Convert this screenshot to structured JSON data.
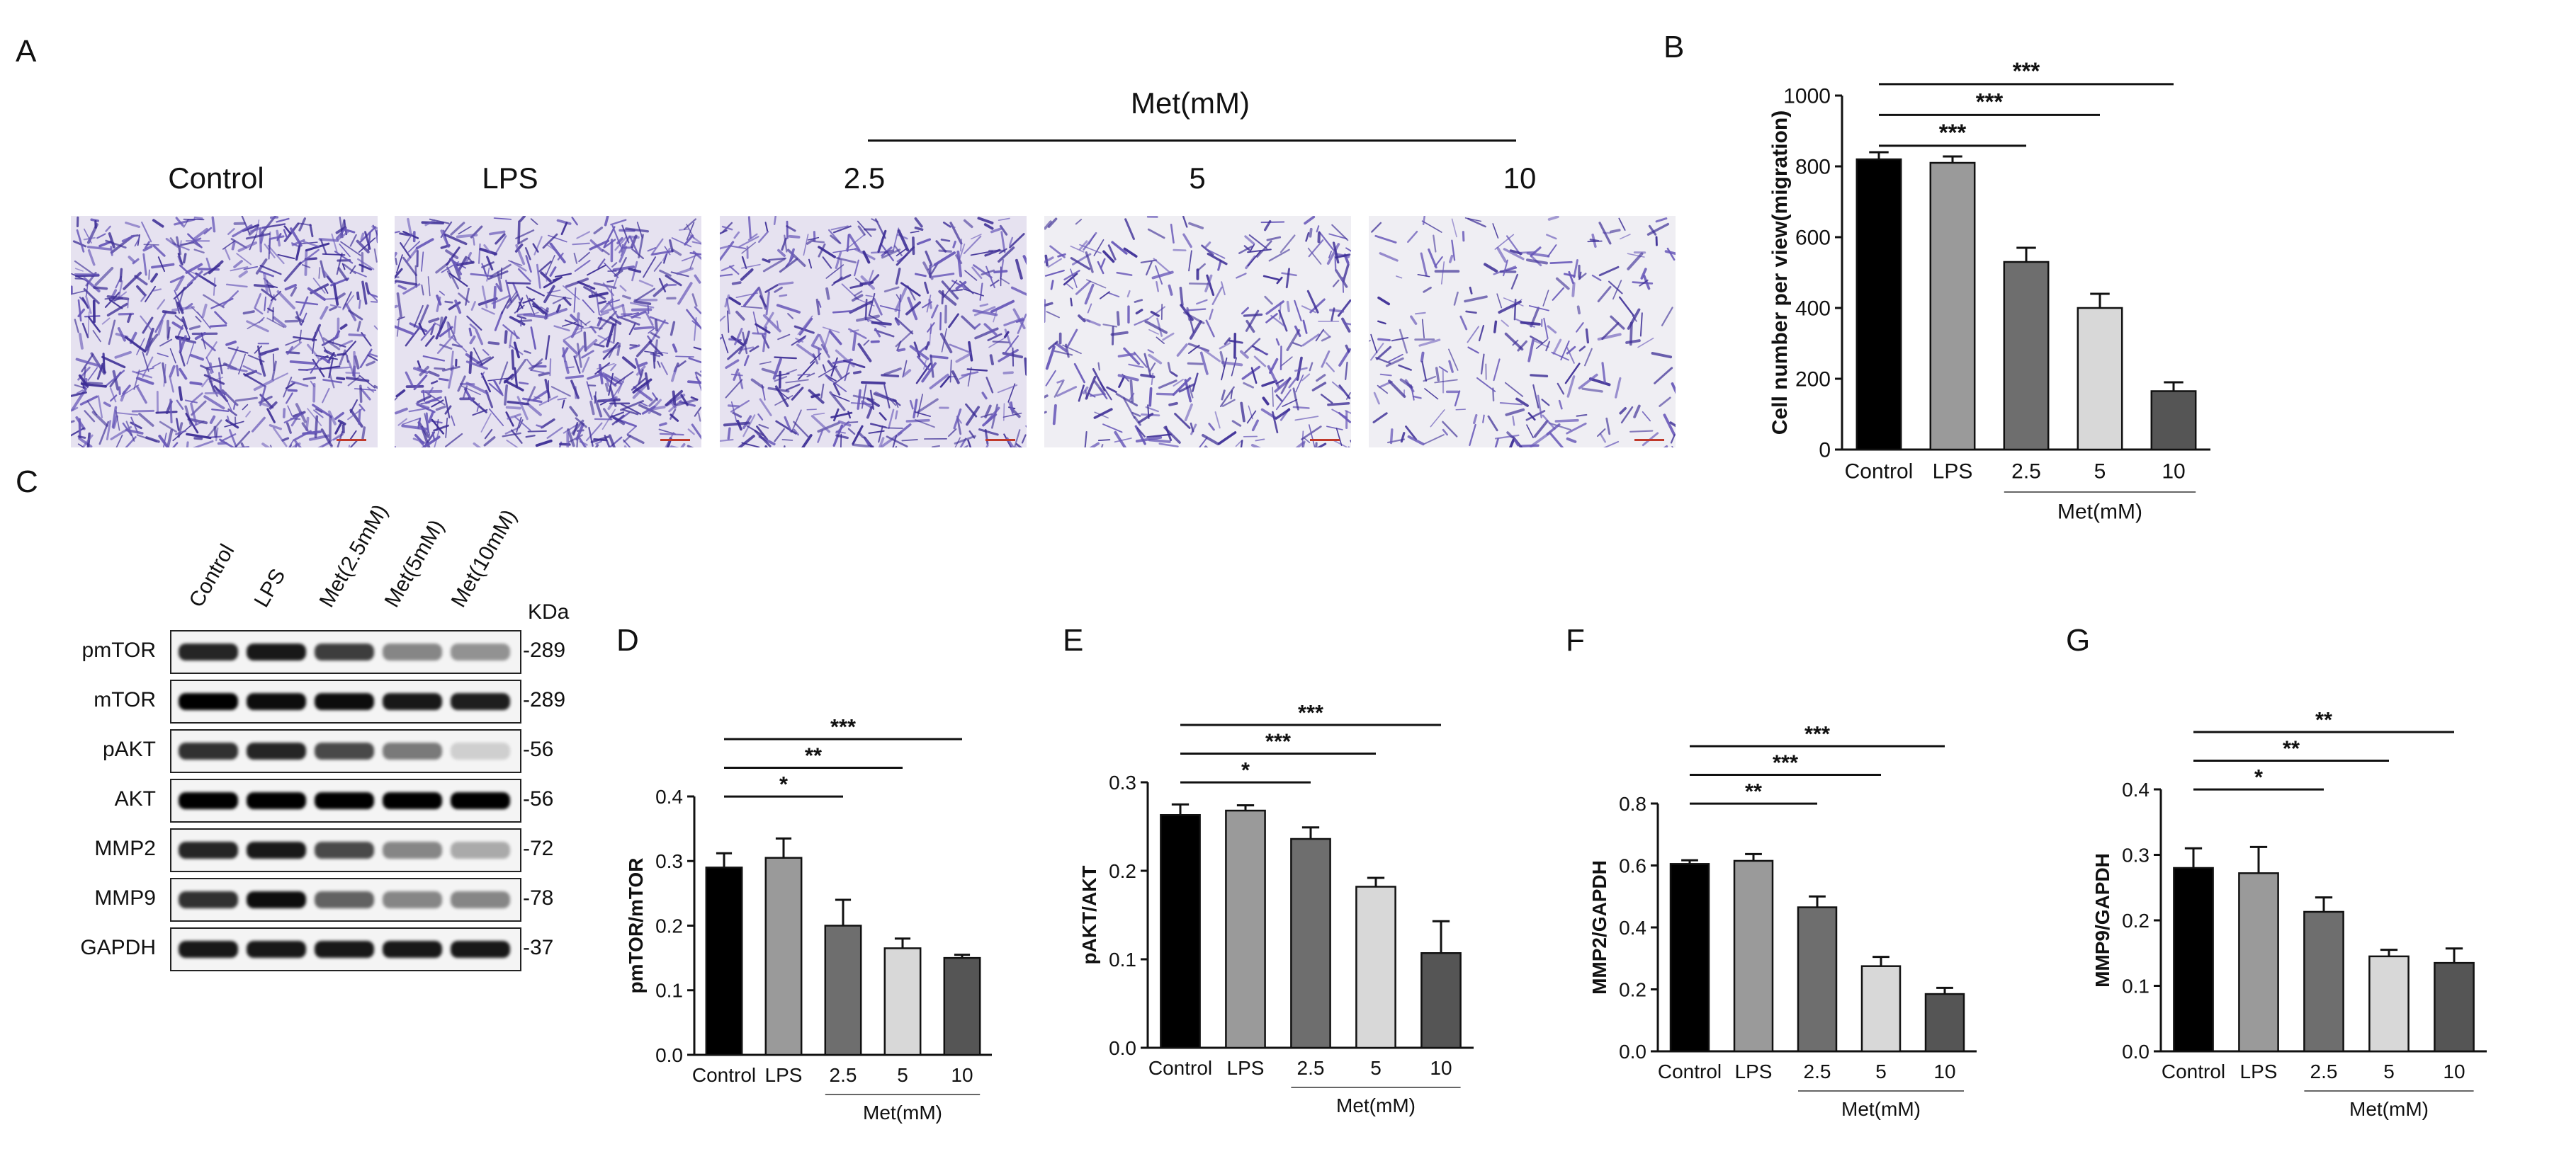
{
  "panel_letters": {
    "a": "A",
    "b": "B",
    "c": "C",
    "d": "D",
    "e": "E",
    "f": "F",
    "g": "G"
  },
  "panel_a": {
    "group_label": "Met(mM)",
    "columns": [
      "Control",
      "LPS",
      "2.5",
      "5",
      "10"
    ]
  },
  "panel_c": {
    "lanes": [
      "Control",
      "LPS",
      "Met(2.5mM)",
      "Met(5mM)",
      "Met(10mM)"
    ],
    "kda_header": "KDa",
    "rows": [
      {
        "protein": "pmTOR",
        "kda": "-289",
        "intensity": [
          0.85,
          0.9,
          0.75,
          0.45,
          0.4
        ]
      },
      {
        "protein": "mTOR",
        "kda": "-289",
        "intensity": [
          1.0,
          0.95,
          0.95,
          0.9,
          0.88
        ]
      },
      {
        "protein": "pAKT",
        "kda": "-56",
        "intensity": [
          0.8,
          0.85,
          0.7,
          0.5,
          0.15
        ]
      },
      {
        "protein": "AKT",
        "kda": "-56",
        "intensity": [
          1.0,
          1.0,
          1.0,
          1.0,
          1.0
        ]
      },
      {
        "protein": "MMP2",
        "kda": "-72",
        "intensity": [
          0.85,
          0.9,
          0.7,
          0.45,
          0.3
        ]
      },
      {
        "protein": "MMP9",
        "kda": "-78",
        "intensity": [
          0.8,
          0.95,
          0.6,
          0.45,
          0.45
        ]
      },
      {
        "protein": "GAPDH",
        "kda": "-37",
        "intensity": [
          0.9,
          0.9,
          0.9,
          0.9,
          0.9
        ]
      }
    ]
  },
  "chart_data": [
    {
      "panel": "B",
      "type": "bar",
      "categories": [
        "Control",
        "LPS",
        "2.5",
        "5",
        "10"
      ],
      "values": [
        820,
        810,
        530,
        400,
        165
      ],
      "errors": [
        20,
        18,
        40,
        40,
        25
      ],
      "ylabel": "Cell number per view(migration)",
      "ylim": [
        0,
        1000
      ],
      "yticks": [
        0,
        200,
        400,
        600,
        800,
        1000
      ],
      "group_label": "Met(mM)",
      "significance": [
        {
          "from": "Control",
          "to": "2.5",
          "label": "***"
        },
        {
          "from": "Control",
          "to": "5",
          "label": "***"
        },
        {
          "from": "Control",
          "to": "10",
          "label": "***"
        }
      ],
      "colors": [
        "#000000",
        "#9a9a9a",
        "#6e6e6e",
        "#d8d8d8",
        "#555555"
      ]
    },
    {
      "panel": "D",
      "type": "bar",
      "categories": [
        "Control",
        "LPS",
        "2.5",
        "5",
        "10"
      ],
      "values": [
        0.29,
        0.305,
        0.2,
        0.165,
        0.15
      ],
      "errors": [
        0.022,
        0.03,
        0.04,
        0.015,
        0.005
      ],
      "ylabel": "pmTOR/mTOR",
      "ylim": [
        0,
        0.4
      ],
      "yticks": [
        "0.0",
        "0.1",
        "0.2",
        "0.3",
        "0.4"
      ],
      "group_label": "Met(mM)",
      "significance": [
        {
          "from": "Control",
          "to": "2.5",
          "label": "*"
        },
        {
          "from": "Control",
          "to": "5",
          "label": "**"
        },
        {
          "from": "Control",
          "to": "10",
          "label": "***"
        }
      ],
      "colors": [
        "#000000",
        "#9a9a9a",
        "#6e6e6e",
        "#d8d8d8",
        "#555555"
      ]
    },
    {
      "panel": "E",
      "type": "bar",
      "categories": [
        "Control",
        "LPS",
        "2.5",
        "5",
        "10"
      ],
      "values": [
        0.263,
        0.268,
        0.236,
        0.182,
        0.107
      ],
      "errors": [
        0.012,
        0.006,
        0.013,
        0.01,
        0.036
      ],
      "ylabel": "pAKT/AKT",
      "ylim": [
        0,
        0.3
      ],
      "yticks": [
        "0.0",
        "0.1",
        "0.2",
        "0.3"
      ],
      "group_label": "Met(mM)",
      "significance": [
        {
          "from": "Control",
          "to": "2.5",
          "label": "*"
        },
        {
          "from": "Control",
          "to": "5",
          "label": "***"
        },
        {
          "from": "Control",
          "to": "10",
          "label": "***"
        }
      ],
      "colors": [
        "#000000",
        "#9a9a9a",
        "#6e6e6e",
        "#d8d8d8",
        "#555555"
      ]
    },
    {
      "panel": "F",
      "type": "bar",
      "categories": [
        "Control",
        "LPS",
        "2.5",
        "5",
        "10"
      ],
      "values": [
        0.605,
        0.615,
        0.465,
        0.275,
        0.185
      ],
      "errors": [
        0.012,
        0.022,
        0.035,
        0.03,
        0.02
      ],
      "ylabel": "MMP2/GAPDH",
      "ylim": [
        0,
        0.8
      ],
      "yticks": [
        "0.0",
        "0.2",
        "0.4",
        "0.6",
        "0.8"
      ],
      "group_label": "Met(mM)",
      "significance": [
        {
          "from": "Control",
          "to": "2.5",
          "label": "**"
        },
        {
          "from": "Control",
          "to": "5",
          "label": "***"
        },
        {
          "from": "Control",
          "to": "10",
          "label": "***"
        }
      ],
      "colors": [
        "#000000",
        "#9a9a9a",
        "#6e6e6e",
        "#d8d8d8",
        "#555555"
      ]
    },
    {
      "panel": "G",
      "type": "bar",
      "categories": [
        "Control",
        "LPS",
        "2.5",
        "5",
        "10"
      ],
      "values": [
        0.28,
        0.272,
        0.213,
        0.145,
        0.135
      ],
      "errors": [
        0.03,
        0.04,
        0.022,
        0.01,
        0.022
      ],
      "ylabel": "MMP9/GAPDH",
      "ylim": [
        0,
        0.4
      ],
      "yticks": [
        "0.0",
        "0.1",
        "0.2",
        "0.3",
        "0.4"
      ],
      "group_label": "Met(mM)",
      "significance": [
        {
          "from": "Control",
          "to": "2.5",
          "label": "*"
        },
        {
          "from": "Control",
          "to": "5",
          "label": "**"
        },
        {
          "from": "Control",
          "to": "10",
          "label": "**"
        }
      ],
      "colors": [
        "#000000",
        "#9a9a9a",
        "#6e6e6e",
        "#d8d8d8",
        "#555555"
      ]
    }
  ]
}
